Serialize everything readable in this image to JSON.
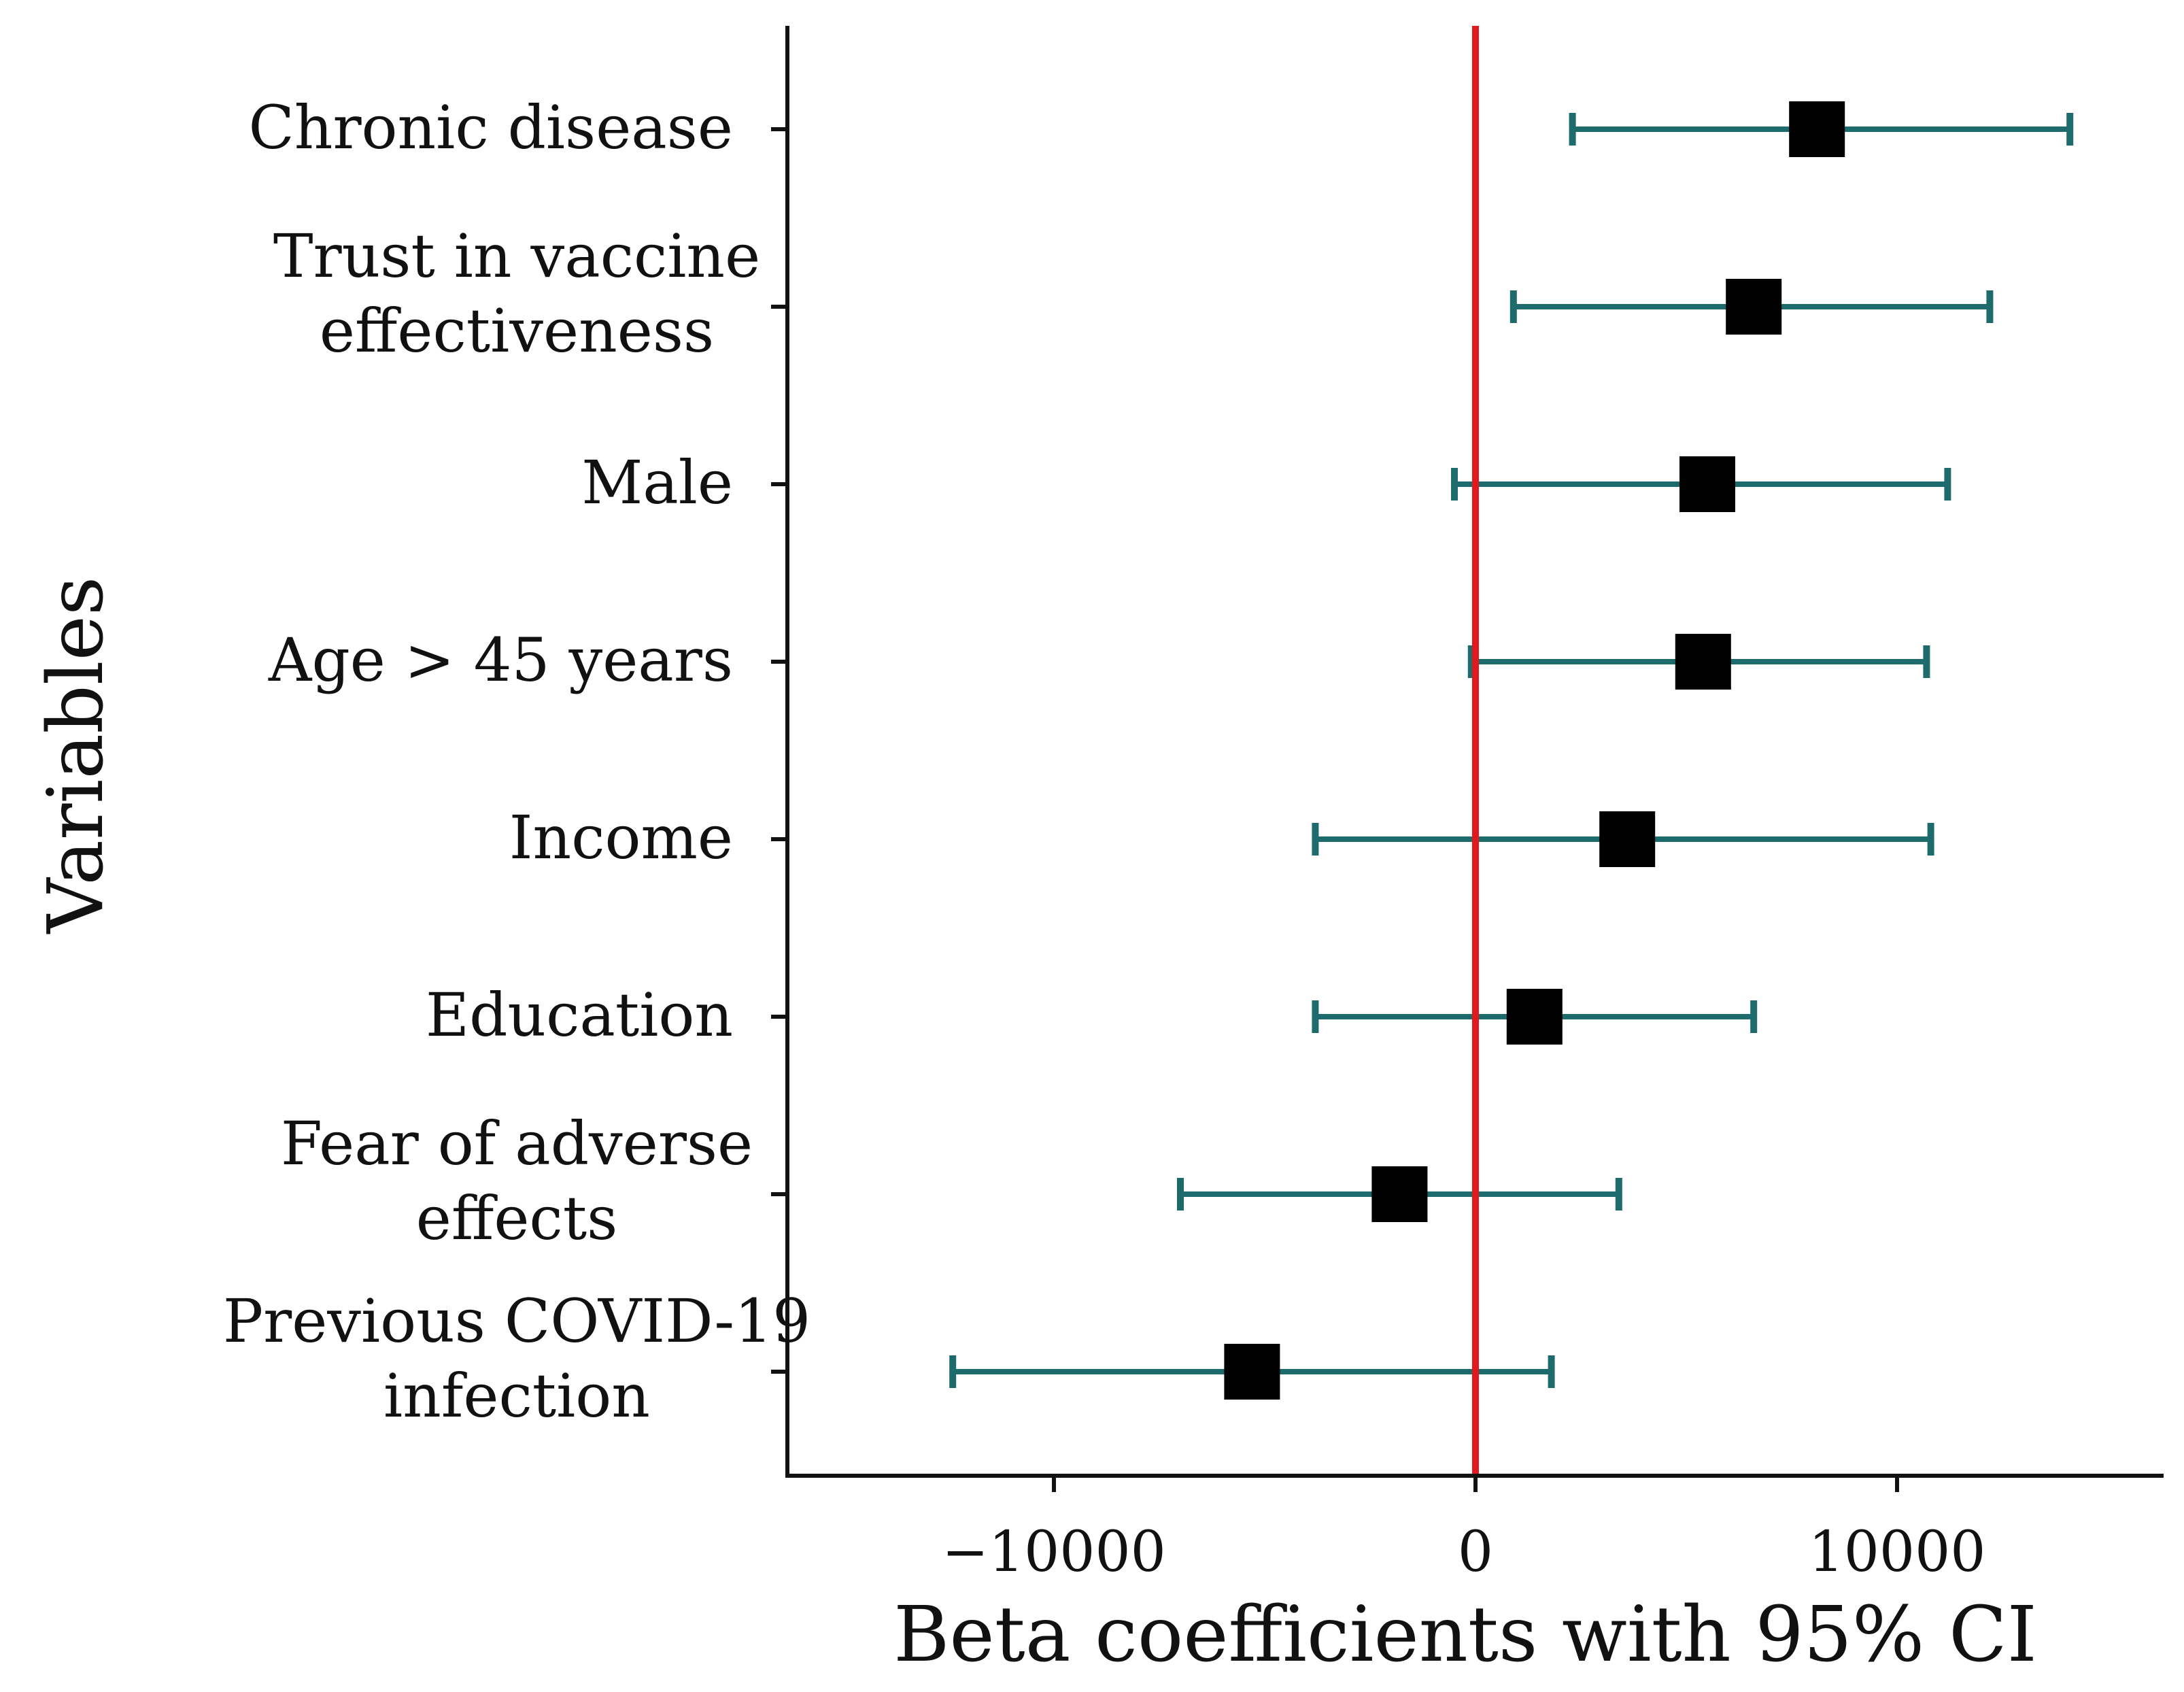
{
  "chart_data": {
    "type": "forest",
    "title": "",
    "xlabel": "Beta coefficients with 95% CI",
    "ylabel": "Variables",
    "xlim": [
      -16500,
      16500
    ],
    "x_ticks": [
      -10000,
      0,
      10000
    ],
    "x_tick_labels": [
      "−10000",
      "0",
      "10000"
    ],
    "reference_line": {
      "x": 0,
      "color": "#e0191f"
    },
    "colors": {
      "ci": "#1e6b6e",
      "point": "#000000",
      "axis": "#111111"
    },
    "grid": false,
    "categories": [
      {
        "label": [
          "Chronic disease"
        ],
        "estimate": 8100,
        "lower": 2300,
        "upper": 14100
      },
      {
        "label": [
          "Trust in vaccine",
          "effectiveness"
        ],
        "estimate": 6600,
        "lower": 900,
        "upper": 12200
      },
      {
        "label": [
          "Male"
        ],
        "estimate": 5500,
        "lower": -500,
        "upper": 11200
      },
      {
        "label": [
          "Age > 45 years"
        ],
        "estimate": 5400,
        "lower": -100,
        "upper": 10700
      },
      {
        "label": [
          "Income"
        ],
        "estimate": 3600,
        "lower": -3800,
        "upper": 10800
      },
      {
        "label": [
          "Education"
        ],
        "estimate": 1400,
        "lower": -3800,
        "upper": 6600
      },
      {
        "label": [
          "Fear of adverse",
          "effects"
        ],
        "estimate": -1800,
        "lower": -7000,
        "upper": 3400
      },
      {
        "label": [
          "Previous COVID-19",
          "infection"
        ],
        "estimate": -5300,
        "lower": -12400,
        "upper": 1800
      }
    ]
  }
}
